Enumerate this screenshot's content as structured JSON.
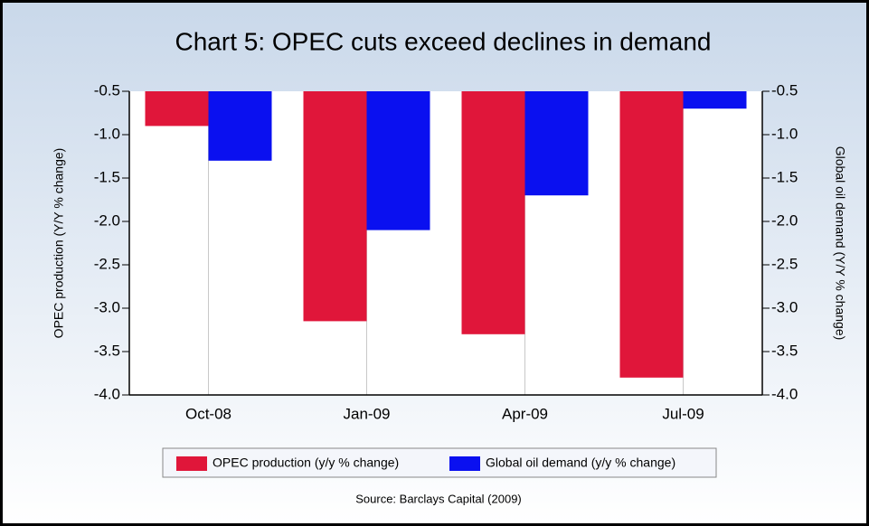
{
  "chart_data": {
    "type": "bar",
    "title": "Chart 5: OPEC cuts exceed declines in demand",
    "ylabel": "OPEC production (Y/Y % change)",
    "y2label": "Global oil demand (Y/Y % change)",
    "source": "Source: Barclays Capital (2009)",
    "categories": [
      "Oct-08",
      "Jan-09",
      "Apr-09",
      "Jul-09"
    ],
    "series": [
      {
        "name": "OPEC production (y/y % change)",
        "color": "#e0163a",
        "values": [
          -0.9,
          -3.15,
          -3.3,
          -3.8
        ]
      },
      {
        "name": "Global oil demand (y/y % change)",
        "color": "#0a10f0",
        "values": [
          -1.3,
          -2.1,
          -1.7,
          -0.7
        ],
        "axis": "y2"
      }
    ],
    "ylim": [
      -4.0,
      -0.5
    ],
    "yticks": [
      {
        "value": -4.0,
        "label": "-4.0"
      },
      -3.5,
      {
        "value": -3.0,
        "label": "-3.0"
      },
      -2.5,
      {
        "value": -2.0,
        "label": "-2.0"
      },
      -1.5,
      {
        "value": -1.0,
        "label": "-1.0"
      },
      -0.5
    ],
    "y2lim": [
      -4.0,
      -0.5
    ],
    "y2ticks": [
      {
        "value": -4.0,
        "label": "-4.0"
      },
      -3.5,
      {
        "value": -3.0,
        "label": "-3.0"
      },
      -2.5,
      {
        "value": -2.0,
        "label": "-2.0"
      },
      -1.5,
      {
        "value": -1.0,
        "label": "-1.0"
      },
      -0.5
    ],
    "xgrid": true,
    "legend": "bottom"
  }
}
